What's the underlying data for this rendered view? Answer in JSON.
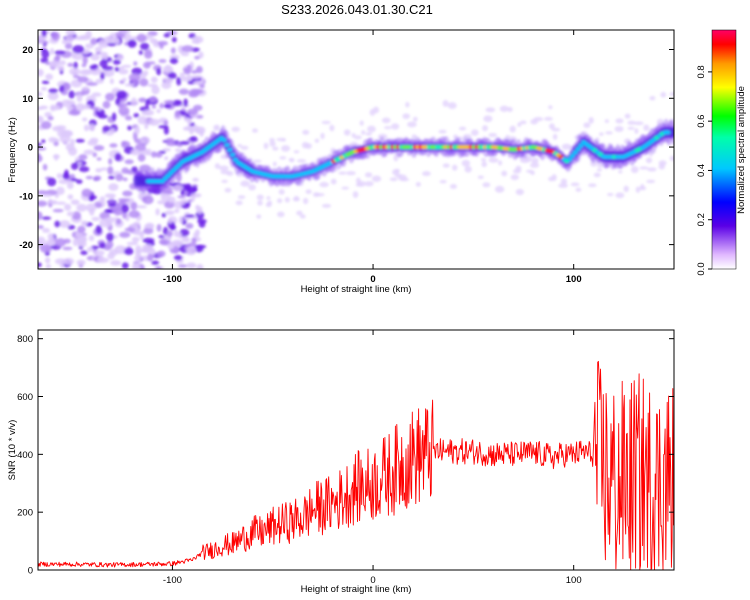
{
  "figure_title": "S233.2026.043.01.30.C21",
  "chart_data": [
    {
      "type": "heatmap",
      "title": "S233.2026.043.01.30.C21",
      "xlabel": "Height of straight line (km)",
      "ylabel": "Frequency (Hz)",
      "xlim": [
        -167,
        150
      ],
      "ylim": [
        -25,
        24
      ],
      "xticks": [
        -100,
        0,
        100
      ],
      "yticks": [
        -20,
        -10,
        0,
        10,
        20
      ],
      "colorbar": {
        "label": "Normalized spectral amplitude",
        "range": [
          0,
          0.97
        ],
        "ticks": [
          0.0,
          0.2,
          0.4,
          0.6,
          0.8
        ]
      },
      "ridge": {
        "x": [
          -115,
          -105,
          -95,
          -85,
          -75,
          -68,
          -60,
          -50,
          -40,
          -30,
          -20,
          -10,
          0,
          10,
          20,
          30,
          40,
          50,
          60,
          70,
          80,
          90,
          97,
          105,
          115,
          125,
          135,
          145
        ],
        "y": [
          -7,
          -7,
          -3,
          -1,
          2,
          -3,
          -5,
          -6,
          -6,
          -5,
          -3,
          -1,
          0,
          0,
          0,
          0,
          0,
          0,
          0,
          -0.5,
          0,
          -1,
          -3,
          1,
          -2,
          -2,
          0,
          3
        ]
      },
      "noise_region_x": [
        -167,
        -85
      ]
    },
    {
      "type": "line",
      "title": "",
      "xlabel": "Height of straight line (km)",
      "ylabel": "SNR (10 * v/v)",
      "xlim": [
        -167,
        150
      ],
      "ylim": [
        0,
        830
      ],
      "xticks": [
        -100,
        0,
        100
      ],
      "yticks": [
        0,
        200,
        400,
        600,
        800
      ],
      "series": [
        {
          "name": "SNR",
          "color": "#ff0000",
          "x": [
            -167,
            -150,
            -130,
            -110,
            -100,
            -90,
            -85,
            -80,
            -75,
            -70,
            -65,
            -60,
            -55,
            -50,
            -45,
            -40,
            -35,
            -30,
            -25,
            -20,
            -15,
            -10,
            -5,
            0,
            5,
            10,
            15,
            20,
            25,
            30,
            40,
            50,
            60,
            70,
            80,
            90,
            95,
            100,
            105,
            110,
            115,
            120,
            125,
            130,
            135,
            140,
            145,
            150
          ],
          "values": [
            20,
            20,
            18,
            20,
            22,
            35,
            60,
            70,
            85,
            90,
            110,
            130,
            130,
            150,
            160,
            170,
            180,
            210,
            220,
            230,
            250,
            280,
            290,
            300,
            320,
            340,
            370,
            390,
            400,
            410,
            410,
            410,
            400,
            400,
            405,
            390,
            400,
            400,
            410,
            400,
            340,
            300,
            300,
            320,
            330,
            280,
            300,
            320
          ]
        }
      ]
    }
  ]
}
